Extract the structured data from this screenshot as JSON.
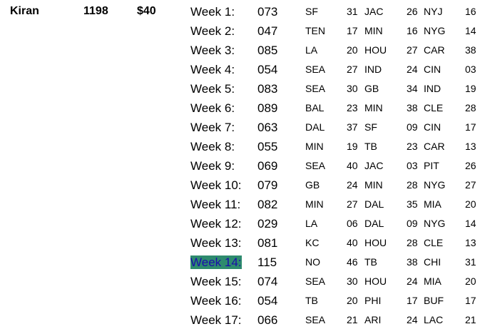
{
  "player": {
    "name": "Kiran",
    "total": "1198",
    "amount": "$40"
  },
  "weeks": [
    {
      "label": "Week 1:",
      "score": "073",
      "picks": [
        {
          "team": "SF",
          "pts": "31"
        },
        {
          "team": "JAC",
          "pts": "26"
        },
        {
          "team": "NYJ",
          "pts": "16"
        }
      ]
    },
    {
      "label": "Week 2:",
      "score": "047",
      "picks": [
        {
          "team": "TEN",
          "pts": "17"
        },
        {
          "team": "MIN",
          "pts": "16"
        },
        {
          "team": "NYG",
          "pts": "14"
        }
      ]
    },
    {
      "label": "Week 3:",
      "score": "085",
      "picks": [
        {
          "team": "LA",
          "pts": "20"
        },
        {
          "team": "HOU",
          "pts": "27"
        },
        {
          "team": "CAR",
          "pts": "38"
        }
      ]
    },
    {
      "label": "Week 4:",
      "score": "054",
      "picks": [
        {
          "team": "SEA",
          "pts": "27"
        },
        {
          "team": "IND",
          "pts": "24"
        },
        {
          "team": "CIN",
          "pts": "03"
        }
      ]
    },
    {
      "label": "Week 5:",
      "score": "083",
      "picks": [
        {
          "team": "SEA",
          "pts": "30"
        },
        {
          "team": "GB",
          "pts": "34"
        },
        {
          "team": "IND",
          "pts": "19"
        }
      ]
    },
    {
      "label": "Week 6:",
      "score": "089",
      "picks": [
        {
          "team": "BAL",
          "pts": "23"
        },
        {
          "team": "MIN",
          "pts": "38"
        },
        {
          "team": "CLE",
          "pts": "28"
        }
      ]
    },
    {
      "label": "Week 7:",
      "score": "063",
      "picks": [
        {
          "team": "DAL",
          "pts": "37"
        },
        {
          "team": "SF",
          "pts": "09"
        },
        {
          "team": "CIN",
          "pts": "17"
        }
      ]
    },
    {
      "label": "Week 8:",
      "score": "055",
      "picks": [
        {
          "team": "MIN",
          "pts": "19"
        },
        {
          "team": "TB",
          "pts": "23"
        },
        {
          "team": "CAR",
          "pts": "13"
        }
      ]
    },
    {
      "label": "Week 9:",
      "score": "069",
      "picks": [
        {
          "team": "SEA",
          "pts": "40"
        },
        {
          "team": "JAC",
          "pts": "03"
        },
        {
          "team": "PIT",
          "pts": "26"
        }
      ]
    },
    {
      "label": "Week 10:",
      "score": "079",
      "picks": [
        {
          "team": "GB",
          "pts": "24"
        },
        {
          "team": "MIN",
          "pts": "28"
        },
        {
          "team": "NYG",
          "pts": "27"
        }
      ]
    },
    {
      "label": "Week 11:",
      "score": "082",
      "picks": [
        {
          "team": "MIN",
          "pts": "27"
        },
        {
          "team": "DAL",
          "pts": "35"
        },
        {
          "team": "MIA",
          "pts": "20"
        }
      ]
    },
    {
      "label": "Week 12:",
      "score": "029",
      "picks": [
        {
          "team": "LA",
          "pts": "06"
        },
        {
          "team": "DAL",
          "pts": "09"
        },
        {
          "team": "NYG",
          "pts": "14"
        }
      ]
    },
    {
      "label": "Week 13:",
      "score": "081",
      "picks": [
        {
          "team": "KC",
          "pts": "40"
        },
        {
          "team": "HOU",
          "pts": "28"
        },
        {
          "team": "CLE",
          "pts": "13"
        }
      ]
    },
    {
      "label": "Week 14:",
      "score": "115",
      "highlight": true,
      "picks": [
        {
          "team": "NO",
          "pts": "46"
        },
        {
          "team": "TB",
          "pts": "38"
        },
        {
          "team": "CHI",
          "pts": "31"
        }
      ]
    },
    {
      "label": "Week 15:",
      "score": "074",
      "picks": [
        {
          "team": "SEA",
          "pts": "30"
        },
        {
          "team": "HOU",
          "pts": "24"
        },
        {
          "team": "MIA",
          "pts": "20"
        }
      ]
    },
    {
      "label": "Week 16:",
      "score": "054",
      "picks": [
        {
          "team": "TB",
          "pts": "20"
        },
        {
          "team": "PHI",
          "pts": "17"
        },
        {
          "team": "BUF",
          "pts": "17"
        }
      ]
    },
    {
      "label": "Week 17:",
      "score": "066",
      "picks": [
        {
          "team": "SEA",
          "pts": "21"
        },
        {
          "team": "ARI",
          "pts": "24"
        },
        {
          "team": "LAC",
          "pts": "21"
        }
      ]
    }
  ]
}
